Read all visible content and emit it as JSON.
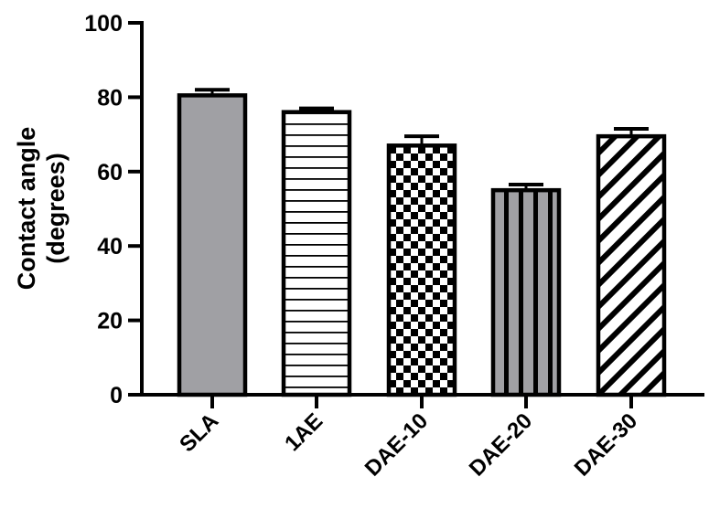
{
  "chart_data": {
    "type": "bar",
    "title": "",
    "xlabel": "",
    "ylabel": "Contact angle (degrees)",
    "ylabel_lines": [
      "Contact angle",
      "(degrees)"
    ],
    "categories": [
      "SLA",
      "1AE",
      "DAE-10",
      "DAE-20",
      "DAE-30"
    ],
    "values": [
      80.5,
      76,
      67,
      55,
      69.5
    ],
    "error_bars": [
      1.5,
      1,
      2.5,
      1.5,
      2
    ],
    "ylim": [
      0,
      100
    ],
    "yticks": [
      0,
      20,
      40,
      60,
      80,
      100
    ],
    "ytick_labels": [
      "0",
      "20",
      "40",
      "60",
      "80",
      "100"
    ],
    "grid": false,
    "legend": null,
    "x_tick_rotation": -45,
    "bar_styles": [
      {
        "category": "SLA",
        "fill": "solid-gray",
        "color": "#a0a0a4"
      },
      {
        "category": "1AE",
        "fill": "horizontal-lines",
        "color": "#000000"
      },
      {
        "category": "DAE-10",
        "fill": "checkerboard",
        "color": "#000000"
      },
      {
        "category": "DAE-20",
        "fill": "vertical-stripes-on-gray",
        "color": "#a0a0a4"
      },
      {
        "category": "DAE-30",
        "fill": "diagonal-stripes",
        "color": "#000000"
      }
    ]
  }
}
